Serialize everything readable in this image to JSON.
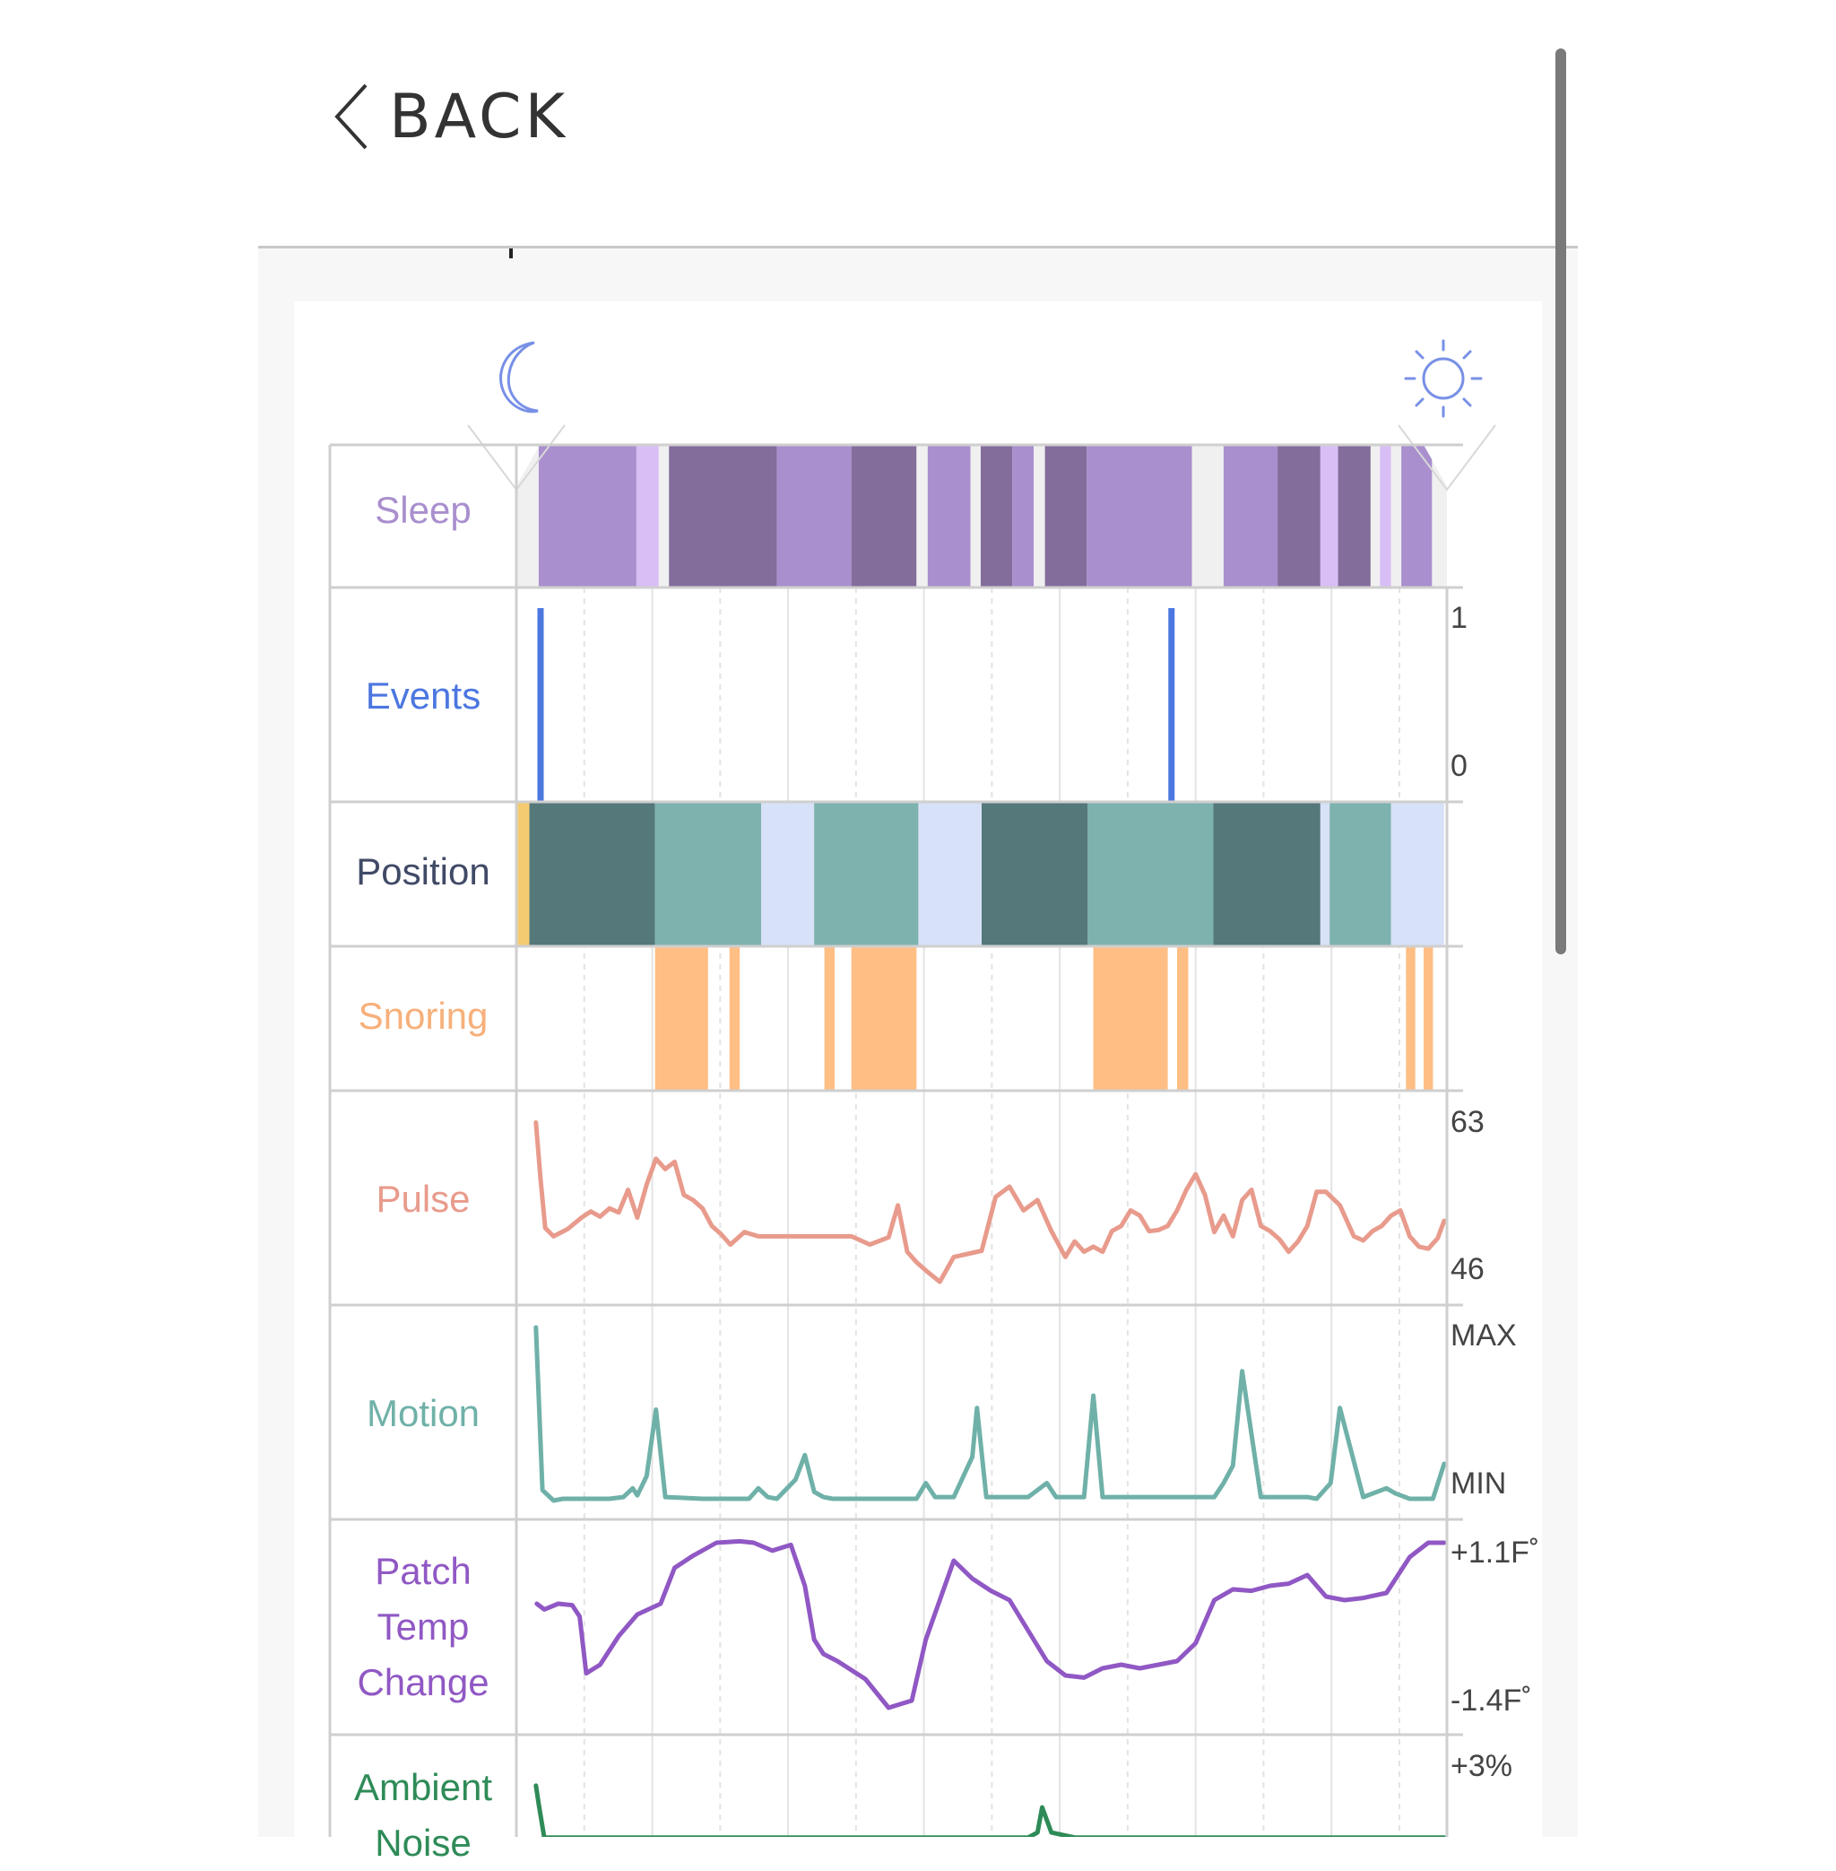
{
  "header": {
    "back_label": "BACK"
  },
  "rows": [
    {
      "id": "sleep",
      "label": "Sleep",
      "color": "#a98fce"
    },
    {
      "id": "events",
      "label": "Events",
      "color": "#4c77e0"
    },
    {
      "id": "position",
      "label": "Position",
      "color": "#404a66"
    },
    {
      "id": "snoring",
      "label": "Snoring",
      "color": "#f7b07a"
    },
    {
      "id": "pulse",
      "label": "Pulse",
      "color": "#e89b8c"
    },
    {
      "id": "motion",
      "label": "Motion",
      "color": "#6fb1a8"
    },
    {
      "id": "patch_temp",
      "label": "Patch\nTemp\nChange",
      "color": "#9058c4"
    },
    {
      "id": "ambient_noise",
      "label": "Ambient\nNoise",
      "color": "#2e8b57"
    }
  ],
  "axes": {
    "events": {
      "top": "1",
      "bottom": "0"
    },
    "pulse": {
      "top": "63",
      "bottom": "46"
    },
    "motion": {
      "top": "MAX",
      "bottom": "MIN"
    },
    "patch_temp": {
      "top": "+1.1F˚",
      "bottom": "-1.4F˚"
    },
    "ambient_noise": {
      "top": "+3%"
    }
  },
  "icons": {
    "start": "moon-icon",
    "end": "sun-icon",
    "back": "chevron-left-icon"
  },
  "colors": {
    "sleep_light": "#a98fce",
    "sleep_deep": "#836d9b",
    "sleep_rem": "#d8bef5",
    "sleep_awake": "#f0f0f0",
    "position_dark": "#55787a",
    "position_mid": "#7db2ae",
    "position_light": "#d7e1f7",
    "position_yellow": "#f5cb72",
    "snoring": "#ffbe84",
    "events": "#4c77e0",
    "pulse": "#e89b8c",
    "motion": "#6fb1a8",
    "temp": "#9058c4",
    "noise": "#2e8b57"
  },
  "chart_data": {
    "type": "timeline",
    "x": [
      0,
      1
    ],
    "sleep_segments": [
      {
        "start": 0.0,
        "end": 0.024,
        "stage": "awake"
      },
      {
        "start": 0.024,
        "end": 0.129,
        "stage": "light"
      },
      {
        "start": 0.129,
        "end": 0.153,
        "stage": "rem"
      },
      {
        "start": 0.153,
        "end": 0.164,
        "stage": "awake"
      },
      {
        "start": 0.164,
        "end": 0.28,
        "stage": "deep"
      },
      {
        "start": 0.28,
        "end": 0.36,
        "stage": "light"
      },
      {
        "start": 0.36,
        "end": 0.43,
        "stage": "deep"
      },
      {
        "start": 0.43,
        "end": 0.442,
        "stage": "awake"
      },
      {
        "start": 0.442,
        "end": 0.488,
        "stage": "light"
      },
      {
        "start": 0.488,
        "end": 0.499,
        "stage": "awake"
      },
      {
        "start": 0.499,
        "end": 0.533,
        "stage": "deep"
      },
      {
        "start": 0.533,
        "end": 0.556,
        "stage": "light"
      },
      {
        "start": 0.556,
        "end": 0.568,
        "stage": "awake"
      },
      {
        "start": 0.568,
        "end": 0.613,
        "stage": "deep"
      },
      {
        "start": 0.613,
        "end": 0.726,
        "stage": "light"
      },
      {
        "start": 0.726,
        "end": 0.76,
        "stage": "awake"
      },
      {
        "start": 0.76,
        "end": 0.818,
        "stage": "light"
      },
      {
        "start": 0.818,
        "end": 0.864,
        "stage": "deep"
      },
      {
        "start": 0.864,
        "end": 0.883,
        "stage": "rem"
      },
      {
        "start": 0.883,
        "end": 0.918,
        "stage": "deep"
      },
      {
        "start": 0.918,
        "end": 0.928,
        "stage": "awake"
      },
      {
        "start": 0.928,
        "end": 0.94,
        "stage": "rem"
      },
      {
        "start": 0.94,
        "end": 0.951,
        "stage": "awake"
      },
      {
        "start": 0.951,
        "end": 0.984,
        "stage": "light"
      },
      {
        "start": 0.984,
        "end": 1.0,
        "stage": "awake"
      }
    ],
    "events": [
      {
        "x": 0.026,
        "value": 1
      },
      {
        "x": 0.704,
        "value": 1
      }
    ],
    "position_segments": [
      {
        "start": 0.0,
        "end": 0.014,
        "kind": "yellow"
      },
      {
        "start": 0.014,
        "end": 0.149,
        "kind": "dark"
      },
      {
        "start": 0.149,
        "end": 0.263,
        "kind": "mid"
      },
      {
        "start": 0.263,
        "end": 0.32,
        "kind": "light"
      },
      {
        "start": 0.32,
        "end": 0.432,
        "kind": "mid"
      },
      {
        "start": 0.432,
        "end": 0.5,
        "kind": "light"
      },
      {
        "start": 0.5,
        "end": 0.614,
        "kind": "dark"
      },
      {
        "start": 0.614,
        "end": 0.749,
        "kind": "mid"
      },
      {
        "start": 0.749,
        "end": 0.864,
        "kind": "dark"
      },
      {
        "start": 0.864,
        "end": 0.874,
        "kind": "light"
      },
      {
        "start": 0.874,
        "end": 0.94,
        "kind": "mid"
      },
      {
        "start": 0.94,
        "end": 0.997,
        "kind": "light"
      }
    ],
    "snoring_segments": [
      {
        "start": 0.149,
        "end": 0.206
      },
      {
        "start": 0.229,
        "end": 0.24
      },
      {
        "start": 0.331,
        "end": 0.342
      },
      {
        "start": 0.36,
        "end": 0.43
      },
      {
        "start": 0.62,
        "end": 0.7
      },
      {
        "start": 0.71,
        "end": 0.722
      },
      {
        "start": 0.956,
        "end": 0.966
      },
      {
        "start": 0.975,
        "end": 0.985
      }
    ],
    "pulse": {
      "ylim": [
        46,
        63
      ],
      "x": [
        0.021,
        0.026,
        0.031,
        0.04,
        0.055,
        0.07,
        0.08,
        0.09,
        0.1,
        0.11,
        0.12,
        0.13,
        0.14,
        0.15,
        0.16,
        0.17,
        0.18,
        0.19,
        0.2,
        0.21,
        0.22,
        0.23,
        0.245,
        0.26,
        0.275,
        0.285,
        0.3,
        0.32,
        0.34,
        0.36,
        0.38,
        0.4,
        0.41,
        0.42,
        0.43,
        0.44,
        0.455,
        0.47,
        0.485,
        0.5,
        0.515,
        0.53,
        0.545,
        0.56,
        0.575,
        0.59,
        0.6,
        0.61,
        0.62,
        0.63,
        0.64,
        0.65,
        0.66,
        0.67,
        0.68,
        0.69,
        0.7,
        0.71,
        0.72,
        0.73,
        0.74,
        0.75,
        0.76,
        0.77,
        0.78,
        0.79,
        0.8,
        0.81,
        0.82,
        0.83,
        0.84,
        0.85,
        0.86,
        0.87,
        0.885,
        0.9,
        0.91,
        0.92,
        0.93,
        0.94,
        0.95,
        0.96,
        0.97,
        0.98,
        0.99,
        0.997
      ],
      "values": [
        62,
        56.5,
        51.8,
        51,
        51.7,
        52.8,
        53.4,
        52.9,
        53.7,
        53.3,
        55.5,
        52.8,
        56,
        58.5,
        57.5,
        58.2,
        55,
        54.5,
        53.7,
        52,
        51.2,
        50.2,
        51.4,
        51,
        51,
        51,
        51,
        51,
        51,
        51,
        50.2,
        50.9,
        54,
        49.5,
        48.5,
        47.7,
        46.6,
        49,
        49.3,
        49.6,
        54.8,
        55.8,
        53.5,
        54.5,
        51.5,
        49,
        50.5,
        49.5,
        50,
        49.5,
        51.5,
        52,
        53.5,
        53,
        51.5,
        51.6,
        52,
        53.5,
        55.5,
        57,
        55,
        51.4,
        53,
        51,
        54.5,
        55.5,
        52,
        51.5,
        50.7,
        49.5,
        50.5,
        52,
        55.3,
        55.3,
        54,
        51,
        50.6,
        51.5,
        52,
        53,
        53.5,
        51,
        50,
        49.8,
        50.8,
        52.5
      ]
    },
    "motion": {
      "ylim": [
        0,
        1
      ],
      "x": [
        0.021,
        0.028,
        0.04,
        0.05,
        0.06,
        0.08,
        0.1,
        0.115,
        0.125,
        0.13,
        0.14,
        0.15,
        0.16,
        0.2,
        0.25,
        0.26,
        0.27,
        0.28,
        0.3,
        0.31,
        0.32,
        0.33,
        0.34,
        0.4,
        0.43,
        0.44,
        0.45,
        0.47,
        0.49,
        0.495,
        0.505,
        0.515,
        0.55,
        0.57,
        0.58,
        0.59,
        0.61,
        0.62,
        0.63,
        0.64,
        0.68,
        0.75,
        0.76,
        0.77,
        0.78,
        0.8,
        0.85,
        0.86,
        0.875,
        0.885,
        0.91,
        0.935,
        0.945,
        0.96,
        0.985,
        0.997
      ],
      "values": [
        0.99,
        0.06,
        0,
        0.01,
        0.01,
        0.01,
        0.01,
        0.02,
        0.07,
        0.03,
        0.14,
        0.52,
        0.02,
        0.01,
        0.01,
        0.07,
        0.02,
        0.01,
        0.12,
        0.26,
        0.05,
        0.02,
        0.01,
        0.01,
        0.01,
        0.1,
        0.02,
        0.02,
        0.25,
        0.53,
        0.02,
        0.02,
        0.02,
        0.1,
        0.02,
        0.02,
        0.02,
        0.6,
        0.02,
        0.02,
        0.02,
        0.02,
        0.1,
        0.2,
        0.74,
        0.02,
        0.02,
        0.01,
        0.1,
        0.53,
        0.02,
        0.07,
        0.04,
        0.01,
        0.01,
        0.21
      ]
    },
    "patch_temp": {
      "ylim": [
        -1.4,
        1.1
      ],
      "x": [
        0.022,
        0.03,
        0.045,
        0.06,
        0.068,
        0.075,
        0.09,
        0.11,
        0.13,
        0.155,
        0.17,
        0.19,
        0.215,
        0.24,
        0.255,
        0.275,
        0.295,
        0.31,
        0.32,
        0.33,
        0.345,
        0.375,
        0.4,
        0.425,
        0.44,
        0.47,
        0.49,
        0.51,
        0.53,
        0.57,
        0.59,
        0.61,
        0.63,
        0.65,
        0.67,
        0.69,
        0.71,
        0.73,
        0.75,
        0.77,
        0.79,
        0.81,
        0.83,
        0.85,
        0.87,
        0.89,
        0.91,
        0.935,
        0.96,
        0.98,
        0.997
      ],
      "values": [
        0.2,
        0.12,
        0.2,
        0.18,
        0.02,
        -0.77,
        -0.65,
        -0.25,
        0.05,
        0.2,
        0.7,
        0.87,
        1.05,
        1.07,
        1.05,
        0.94,
        1.02,
        0.45,
        -0.3,
        -0.5,
        -0.6,
        -0.85,
        -1.25,
        -1.15,
        -0.3,
        0.8,
        0.55,
        0.38,
        0.25,
        -0.6,
        -0.8,
        -0.83,
        -0.7,
        -0.65,
        -0.7,
        -0.65,
        -0.6,
        -0.35,
        0.25,
        0.4,
        0.38,
        0.45,
        0.48,
        0.6,
        0.3,
        0.25,
        0.28,
        0.35,
        0.85,
        1.05,
        1.05
      ]
    },
    "ambient_noise": {
      "ylim": [
        0,
        3
      ],
      "x": [
        0.021,
        0.024,
        0.03,
        0.1,
        0.2,
        0.3,
        0.4,
        0.5,
        0.55,
        0.56,
        0.565,
        0.575,
        0.6,
        0.7,
        0.8,
        0.9,
        0.997
      ],
      "values": [
        3.6,
        2.5,
        0.5,
        0.5,
        0.5,
        0.5,
        0.5,
        0.5,
        0.5,
        0.8,
        2.3,
        0.8,
        0.5,
        0.5,
        0.5,
        0.5,
        0.5
      ]
    }
  }
}
